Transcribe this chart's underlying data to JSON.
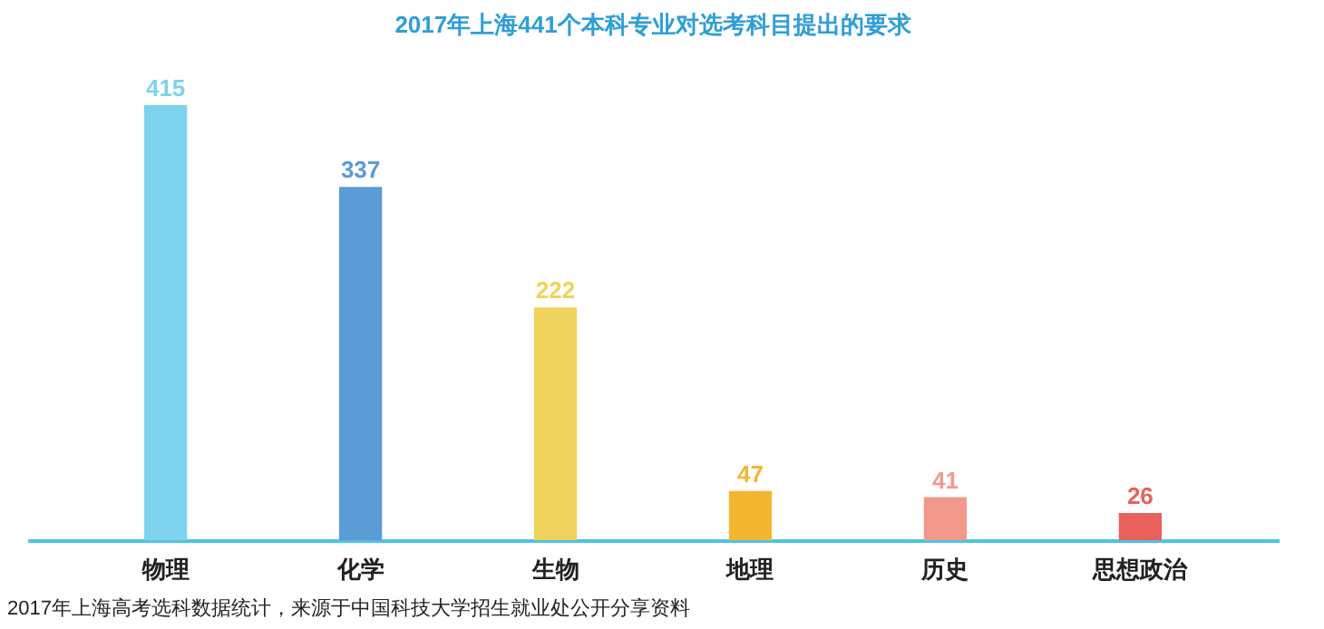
{
  "chart_data": {
    "type": "bar",
    "title": "2017年上海441个本科专业对选考科目提出的要求",
    "categories": [
      "物理",
      "化学",
      "生物",
      "地理",
      "历史",
      "思想政治"
    ],
    "values": [
      415,
      337,
      222,
      47,
      41,
      26
    ],
    "colors": [
      "#7dd3ee",
      "#5b9bd6",
      "#f0d35c",
      "#f4b630",
      "#f2998b",
      "#e8625b"
    ],
    "data_labels": true,
    "annotations": [
      "2017年上海高考选科数据统计，来源于中国科技大学招生就业处公开分享资料"
    ]
  }
}
